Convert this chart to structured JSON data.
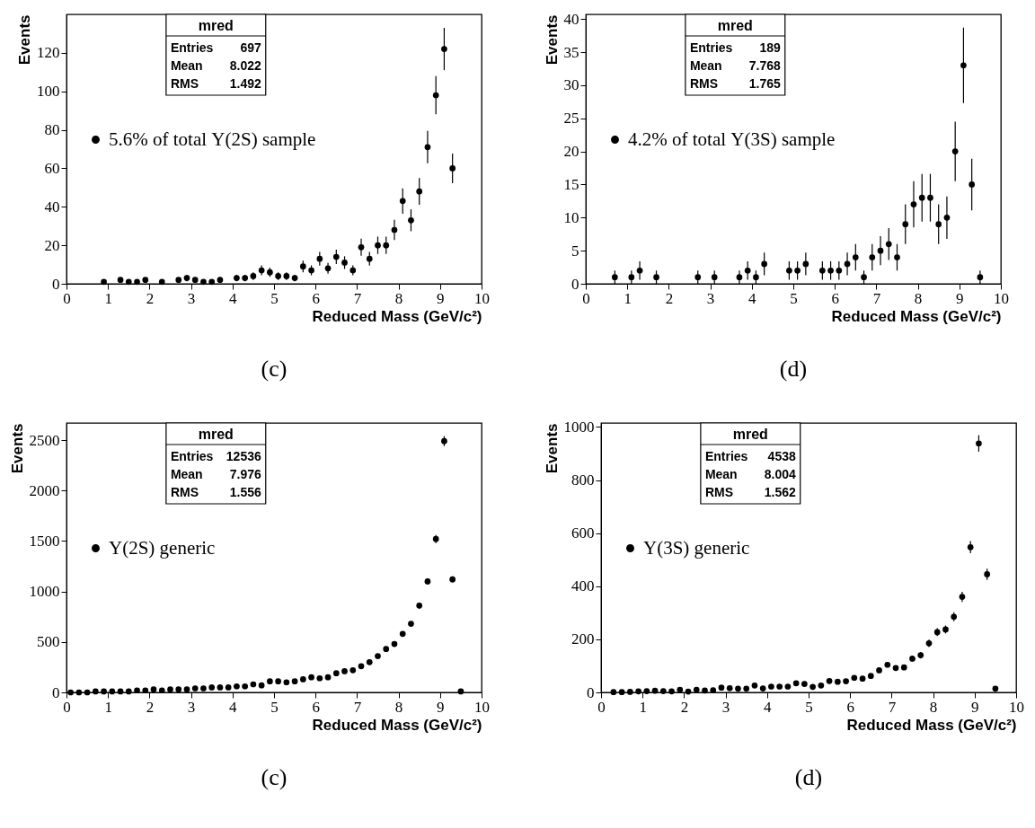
{
  "chart_data": [
    {
      "type": "scatter",
      "title": "(c)",
      "xlabel": "Reduced Mass (GeV/c²)",
      "ylabel": "Events",
      "xlim": [
        0,
        10
      ],
      "xticks": [
        0,
        1,
        2,
        3,
        4,
        5,
        6,
        7,
        8,
        9,
        10
      ],
      "ylim": [
        0,
        140
      ],
      "yticks": [
        0,
        20,
        40,
        60,
        80,
        100,
        120
      ],
      "legend": "left",
      "marker": "circle",
      "annotations": [
        "mred",
        "Entries",
        "697",
        "Mean",
        "8.022",
        "RMS",
        "1.492"
      ],
      "x": [
        0.9,
        1.3,
        1.5,
        1.7,
        1.9,
        2.3,
        2.7,
        2.9,
        3.1,
        3.3,
        3.5,
        3.7,
        4.1,
        4.3,
        4.5,
        4.7,
        4.9,
        5.1,
        5.3,
        5.5,
        5.7,
        5.9,
        6.1,
        6.3,
        6.5,
        6.7,
        6.9,
        7.1,
        7.3,
        7.5,
        7.7,
        7.9,
        8.1,
        8.3,
        8.5,
        8.7,
        8.9,
        9.1,
        9.3
      ],
      "series": [
        {
          "name": "5.6% of total Υ(2S) sample",
          "color": "#000000",
          "values": [
            1,
            2,
            1,
            1,
            2,
            1,
            2,
            3,
            2,
            1,
            1,
            2,
            3,
            3,
            4,
            7,
            6,
            4,
            4,
            3,
            9,
            7,
            13,
            8,
            14,
            11,
            7,
            19,
            13,
            20,
            20,
            28,
            43,
            33,
            48,
            71,
            98,
            122,
            60
          ],
          "errors": [
            null,
            null,
            null,
            null,
            null,
            null,
            null,
            1.7,
            null,
            null,
            null,
            null,
            1.7,
            1.7,
            2,
            2.6,
            2.4,
            2,
            2,
            1.7,
            3,
            2.6,
            3.6,
            2.8,
            3.7,
            3.3,
            2.6,
            4.4,
            3.6,
            4.5,
            4.5,
            5.3,
            6.6,
            5.7,
            6.9,
            8.4,
            9.9,
            11,
            7.7
          ]
        }
      ]
    },
    {
      "type": "scatter",
      "title": "(d)",
      "xlabel": "Reduced Mass (GeV/c²)",
      "ylabel": "Events",
      "xlim": [
        0,
        10
      ],
      "xticks": [
        0,
        1,
        2,
        3,
        4,
        5,
        6,
        7,
        8,
        9,
        10
      ],
      "ylim": [
        0,
        40.7
      ],
      "yticks": [
        0,
        5,
        10,
        15,
        20,
        25,
        30,
        35,
        40
      ],
      "legend": "left",
      "marker": "circle",
      "annotations": [
        "mred",
        "Entries",
        "189",
        "Mean",
        "7.768",
        "RMS",
        "1.765"
      ],
      "x": [
        0.7,
        1.1,
        1.3,
        1.7,
        2.7,
        3.1,
        3.7,
        3.9,
        4.1,
        4.3,
        4.9,
        5.1,
        5.3,
        5.7,
        5.9,
        6.1,
        6.3,
        6.5,
        6.7,
        6.9,
        7.1,
        7.3,
        7.5,
        7.7,
        7.9,
        8.1,
        8.3,
        8.5,
        8.7,
        8.9,
        9.1,
        9.3,
        9.5
      ],
      "series": [
        {
          "name": "4.2% of total Υ(3S) sample",
          "color": "#000000",
          "values": [
            1,
            1,
            2,
            1,
            1,
            1,
            1,
            2,
            1,
            3,
            2,
            2,
            3,
            2,
            2,
            2,
            3,
            4,
            1,
            4,
            5,
            6,
            4,
            9,
            12,
            13,
            13,
            9,
            10,
            20,
            33,
            15,
            1
          ],
          "errors": [
            1,
            1,
            1.4,
            1,
            1,
            1,
            1,
            1.4,
            1,
            1.7,
            1.4,
            1.4,
            1.7,
            1.4,
            1.4,
            1.4,
            1.7,
            2,
            1,
            2,
            2.2,
            2.4,
            2,
            3,
            3.5,
            3.6,
            3.6,
            3,
            3.2,
            4.5,
            5.7,
            3.9,
            1
          ]
        }
      ]
    },
    {
      "type": "scatter",
      "title": "(c)",
      "xlabel": "Reduced Mass (GeV/c²)",
      "ylabel": "Events",
      "xlim": [
        0,
        10
      ],
      "xticks": [
        0,
        1,
        2,
        3,
        4,
        5,
        6,
        7,
        8,
        9,
        10
      ],
      "ylim": [
        0,
        2670
      ],
      "yticks": [
        0,
        500,
        1000,
        1500,
        2000,
        2500
      ],
      "legend": "left",
      "marker": "circle",
      "annotations": [
        "mred",
        "Entries",
        "12536",
        "Mean",
        "7.976",
        "RMS",
        "1.556"
      ],
      "x": [
        0.1,
        0.3,
        0.5,
        0.7,
        0.9,
        1.1,
        1.3,
        1.5,
        1.7,
        1.9,
        2.1,
        2.3,
        2.5,
        2.7,
        2.9,
        3.1,
        3.3,
        3.5,
        3.7,
        3.9,
        4.1,
        4.3,
        4.5,
        4.7,
        4.9,
        5.1,
        5.3,
        5.5,
        5.7,
        5.9,
        6.1,
        6.3,
        6.5,
        6.7,
        6.9,
        7.1,
        7.3,
        7.5,
        7.7,
        7.9,
        8.1,
        8.3,
        8.5,
        8.7,
        8.9,
        9.1,
        9.3,
        9.5
      ],
      "series": [
        {
          "name": "Υ(2S) generic",
          "color": "#000000",
          "values": [
            0,
            0,
            0,
            10,
            10,
            10,
            10,
            10,
            20,
            20,
            30,
            20,
            30,
            30,
            30,
            40,
            40,
            50,
            50,
            50,
            60,
            60,
            80,
            70,
            110,
            110,
            100,
            110,
            130,
            150,
            140,
            150,
            190,
            210,
            220,
            260,
            300,
            360,
            430,
            480,
            580,
            680,
            860,
            1100,
            1520,
            2490,
            1120,
            10
          ],
          "errors": [
            null,
            null,
            null,
            null,
            null,
            null,
            null,
            null,
            null,
            null,
            null,
            null,
            null,
            null,
            null,
            null,
            null,
            null,
            null,
            null,
            null,
            null,
            null,
            null,
            null,
            null,
            null,
            null,
            null,
            null,
            null,
            null,
            null,
            null,
            null,
            null,
            null,
            null,
            null,
            null,
            null,
            null,
            30,
            30,
            40,
            50,
            30,
            null
          ]
        }
      ]
    },
    {
      "type": "scatter",
      "title": "(d)",
      "xlabel": "Reduced Mass (GeV/c²)",
      "ylabel": "Events",
      "xlim": [
        0,
        10
      ],
      "xticks": [
        0,
        1,
        2,
        3,
        4,
        5,
        6,
        7,
        8,
        9,
        10
      ],
      "ylim": [
        0,
        1015
      ],
      "yticks": [
        0,
        200,
        400,
        600,
        800,
        1000
      ],
      "legend": "left",
      "marker": "circle",
      "annotations": [
        "mred",
        "Entries",
        "4538",
        "Mean",
        "8.004",
        "RMS",
        "1.562"
      ],
      "x": [
        0.3,
        0.5,
        0.7,
        0.9,
        1.1,
        1.3,
        1.5,
        1.7,
        1.9,
        2.1,
        2.3,
        2.5,
        2.7,
        2.9,
        3.1,
        3.3,
        3.5,
        3.7,
        3.9,
        4.1,
        4.3,
        4.5,
        4.7,
        4.9,
        5.1,
        5.3,
        5.5,
        5.7,
        5.9,
        6.1,
        6.3,
        6.5,
        6.7,
        6.9,
        7.1,
        7.3,
        7.5,
        7.7,
        7.9,
        8.1,
        8.3,
        8.5,
        8.7,
        8.9,
        9.1,
        9.3,
        9.5
      ],
      "series": [
        {
          "name": "Υ(3S) generic",
          "color": "#000000",
          "values": [
            1,
            1,
            2,
            4,
            5,
            6,
            5,
            4,
            10,
            3,
            10,
            7,
            8,
            18,
            16,
            14,
            14,
            26,
            15,
            22,
            22,
            22,
            34,
            32,
            21,
            26,
            43,
            40,
            42,
            55,
            52,
            62,
            83,
            104,
            92,
            94,
            127,
            140,
            185,
            227,
            237,
            285,
            360,
            547,
            938,
            445,
            14
          ],
          "errors": [
            null,
            null,
            null,
            null,
            null,
            null,
            null,
            null,
            null,
            null,
            null,
            null,
            null,
            null,
            null,
            null,
            null,
            null,
            null,
            null,
            null,
            null,
            null,
            null,
            null,
            null,
            null,
            null,
            null,
            null,
            null,
            null,
            null,
            null,
            null,
            null,
            11,
            12,
            14,
            15,
            15,
            17,
            19,
            23,
            31,
            21,
            null
          ]
        }
      ]
    }
  ]
}
